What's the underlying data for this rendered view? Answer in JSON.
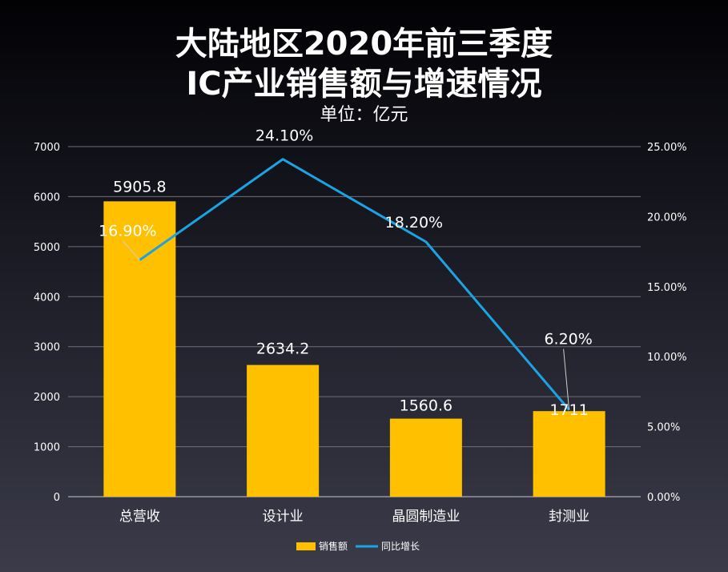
{
  "chart_data": {
    "type": "bar",
    "title_line1": "大陆地区2020年前三季度",
    "title_line2": "IC产业销售额与增速情况",
    "subtitle": "单位：亿元",
    "categories": [
      "总营收",
      "设计业",
      "晶圆制造业",
      "封测业"
    ],
    "series": [
      {
        "name": "销售额",
        "type": "bar",
        "axis": "left",
        "color": "#FFC000",
        "values": [
          5905.8,
          2634.2,
          1560.6,
          1711
        ],
        "labels": [
          "5905.8",
          "2634.2",
          "1560.6",
          "1711"
        ]
      },
      {
        "name": "同比增长",
        "type": "line",
        "axis": "right",
        "color": "#1CA3E3",
        "values": [
          16.9,
          24.1,
          18.2,
          6.2
        ],
        "labels": [
          "16.90%",
          "24.10%",
          "18.20%",
          "6.20%"
        ]
      }
    ],
    "y_left": {
      "min": 0,
      "max": 7000,
      "step": 1000,
      "ticks": [
        "0",
        "1000",
        "2000",
        "3000",
        "4000",
        "5000",
        "6000",
        "7000"
      ]
    },
    "y_right": {
      "min": 0,
      "max": 25,
      "step": 5,
      "ticks": [
        "0.00%",
        "5.00%",
        "10.00%",
        "15.00%",
        "20.00%",
        "25.00%"
      ]
    },
    "grid": true,
    "legend_position": "bottom"
  }
}
